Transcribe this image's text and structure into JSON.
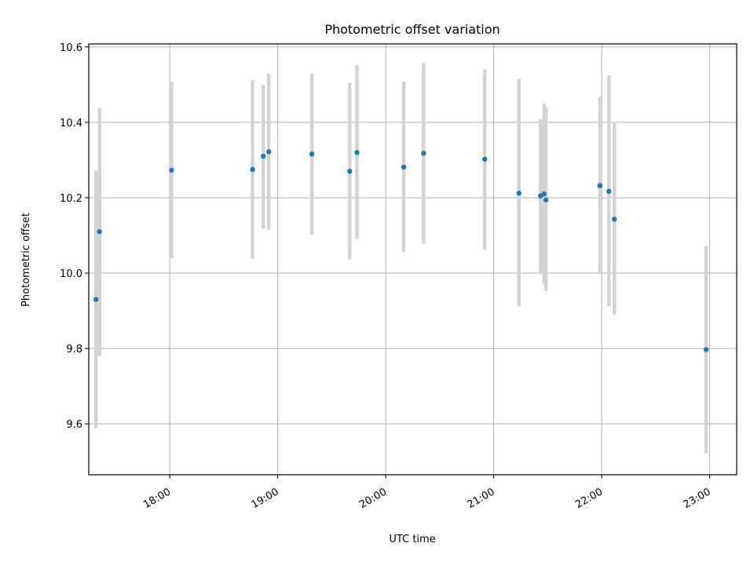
{
  "chart_data": {
    "type": "scatter",
    "title": "Photometric offset variation",
    "xlabel": "UTC time",
    "ylabel": "Photometric offset",
    "x_ticks": [
      "18:00",
      "19:00",
      "20:00",
      "21:00",
      "22:00",
      "23:00"
    ],
    "y_ticks": [
      "9.6",
      "9.8",
      "10.0",
      "10.2",
      "10.4",
      "10.6"
    ],
    "xlim": [
      "17:15",
      "23:15"
    ],
    "ylim": [
      9.465,
      10.608
    ],
    "grid": true,
    "legend": false,
    "point_color": "#1f77b4",
    "errorbar_color": "#d3d3d3",
    "points": [
      {
        "x": "17:19",
        "y": 9.93,
        "ylo": 9.588,
        "yhi": 10.272
      },
      {
        "x": "17:21",
        "y": 10.11,
        "ylo": 9.78,
        "yhi": 10.438
      },
      {
        "x": "18:01",
        "y": 10.273,
        "ylo": 10.04,
        "yhi": 10.507
      },
      {
        "x": "18:46",
        "y": 10.275,
        "ylo": 10.038,
        "yhi": 10.512
      },
      {
        "x": "18:52",
        "y": 10.31,
        "ylo": 10.118,
        "yhi": 10.5
      },
      {
        "x": "18:55",
        "y": 10.322,
        "ylo": 10.115,
        "yhi": 10.53
      },
      {
        "x": "19:19",
        "y": 10.316,
        "ylo": 10.102,
        "yhi": 10.53
      },
      {
        "x": "19:40",
        "y": 10.27,
        "ylo": 10.036,
        "yhi": 10.505
      },
      {
        "x": "19:44",
        "y": 10.32,
        "ylo": 10.09,
        "yhi": 10.552
      },
      {
        "x": "20:10",
        "y": 10.281,
        "ylo": 10.055,
        "yhi": 10.508
      },
      {
        "x": "20:21",
        "y": 10.318,
        "ylo": 10.078,
        "yhi": 10.557
      },
      {
        "x": "20:55",
        "y": 10.302,
        "ylo": 10.062,
        "yhi": 10.54
      },
      {
        "x": "21:14",
        "y": 10.212,
        "ylo": 9.912,
        "yhi": 10.515
      },
      {
        "x": "21:26",
        "y": 10.205,
        "ylo": 10.0,
        "yhi": 10.408
      },
      {
        "x": "21:28",
        "y": 10.21,
        "ylo": 9.97,
        "yhi": 10.45
      },
      {
        "x": "21:29",
        "y": 10.194,
        "ylo": 9.952,
        "yhi": 10.44
      },
      {
        "x": "21:59",
        "y": 10.232,
        "ylo": 9.998,
        "yhi": 10.468
      },
      {
        "x": "22:04",
        "y": 10.217,
        "ylo": 9.912,
        "yhi": 10.524
      },
      {
        "x": "22:07",
        "y": 10.143,
        "ylo": 9.89,
        "yhi": 10.4
      },
      {
        "x": "22:58",
        "y": 9.797,
        "ylo": 9.522,
        "yhi": 10.072
      }
    ]
  }
}
